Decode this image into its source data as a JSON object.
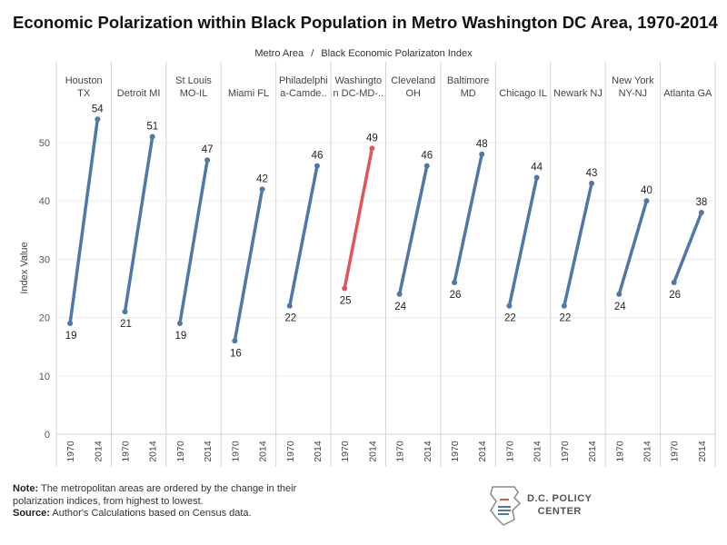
{
  "title": "Economic Polarization within Black Population in Metro Washington DC Area, 1970-2014",
  "header": {
    "dimension": "Metro Area",
    "separator": "/",
    "measure": "Black Economic Polarizaton Index"
  },
  "chart_data": {
    "type": "line",
    "ylabel": "Index Value",
    "ylim": [
      0,
      57
    ],
    "yticks": [
      0,
      10,
      20,
      30,
      40,
      50
    ],
    "x": [
      "1970",
      "2014"
    ],
    "grid": true,
    "colors": {
      "default": "#4e79a7",
      "highlight": "#e15759"
    },
    "panels": [
      {
        "label": [
          "Houston",
          "TX"
        ],
        "values": [
          19,
          54
        ],
        "highlight": false
      },
      {
        "label": [
          "Detroit MI"
        ],
        "values": [
          21,
          51
        ],
        "highlight": false
      },
      {
        "label": [
          "St Louis",
          "MO-IL"
        ],
        "values": [
          19,
          47
        ],
        "highlight": false
      },
      {
        "label": [
          "Miami FL"
        ],
        "values": [
          16,
          42
        ],
        "highlight": false
      },
      {
        "label": [
          "Philadelphi",
          "a-Camde.."
        ],
        "values": [
          22,
          46
        ],
        "highlight": false
      },
      {
        "label": [
          "Washingto",
          "n DC-MD-.."
        ],
        "values": [
          25,
          49
        ],
        "highlight": true
      },
      {
        "label": [
          "Cleveland",
          "OH"
        ],
        "values": [
          24,
          46
        ],
        "highlight": false
      },
      {
        "label": [
          "Baltimore",
          "MD"
        ],
        "values": [
          26,
          48
        ],
        "highlight": false
      },
      {
        "label": [
          "Chicago IL"
        ],
        "values": [
          22,
          44
        ],
        "highlight": false
      },
      {
        "label": [
          "Newark NJ"
        ],
        "values": [
          22,
          43
        ],
        "highlight": false
      },
      {
        "label": [
          "New York",
          "NY-NJ"
        ],
        "values": [
          24,
          40
        ],
        "highlight": false
      },
      {
        "label": [
          "Atlanta GA"
        ],
        "values": [
          26,
          38
        ],
        "highlight": false
      }
    ]
  },
  "footer": {
    "note_label": "Note:",
    "note_text": "The metropolitan areas are ordered by the change in their polarization indices, from highest to lowest.",
    "source_label": "Source:",
    "source_text": "Author's Calculations based on Census data."
  },
  "logo": {
    "line1": "D.C. POLICY",
    "line2": "CENTER"
  }
}
